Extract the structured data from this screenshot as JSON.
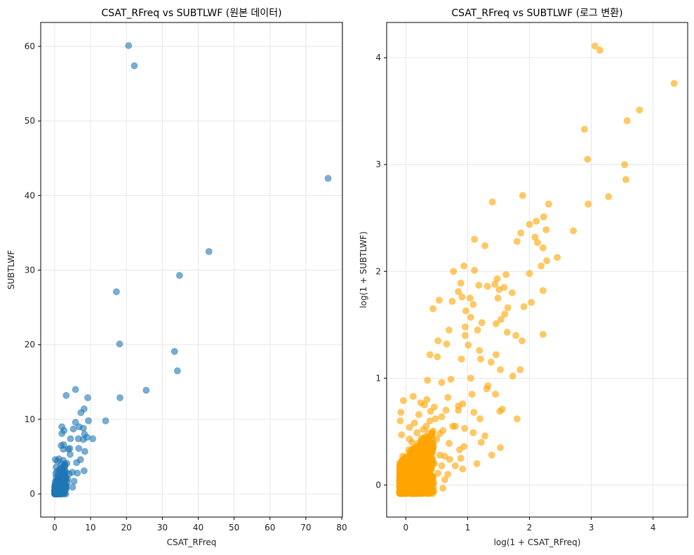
{
  "chart_data": [
    {
      "type": "scatter",
      "title": "CSAT_RFreq vs SUBTLWF (원본 데이터)",
      "xlabel": "CSAT_RFreq",
      "ylabel": "SUBTLWF",
      "xlim": [
        -3.9,
        80.2
      ],
      "ylim": [
        -3.1,
        63.2
      ],
      "xticks": [
        0,
        10,
        20,
        30,
        40,
        50,
        60,
        70,
        80
      ],
      "xtick_labels": [
        "0",
        "10",
        "20",
        "30",
        "40",
        "50",
        "60",
        "70",
        "80"
      ],
      "yticks": [
        0,
        10,
        20,
        30,
        40,
        50,
        60
      ],
      "ytick_labels": [
        "0",
        "10",
        "20",
        "30",
        "40",
        "50",
        "60"
      ],
      "grid": true,
      "color": "#1f77b4",
      "alpha": 0.6,
      "points": [
        [
          20.6,
          60.1
        ],
        [
          22.2,
          57.4
        ],
        [
          76.2,
          42.3
        ],
        [
          43.0,
          32.5
        ],
        [
          34.8,
          29.3
        ],
        [
          17.2,
          27.1
        ],
        [
          18.1,
          20.1
        ],
        [
          33.4,
          19.1
        ],
        [
          34.2,
          16.5
        ],
        [
          25.5,
          13.9
        ],
        [
          18.2,
          12.9
        ],
        [
          14.2,
          9.8
        ],
        [
          5.8,
          14.0
        ],
        [
          3.2,
          13.2
        ],
        [
          9.2,
          12.9
        ],
        [
          8.2,
          11.4
        ],
        [
          7.3,
          10.9
        ],
        [
          9.4,
          9.8
        ],
        [
          10.6,
          7.4
        ],
        [
          2.0,
          9.0
        ],
        [
          5.8,
          9.6
        ],
        [
          6.8,
          9.0
        ],
        [
          8.0,
          8.8
        ],
        [
          5.2,
          8.7
        ],
        [
          2.6,
          8.5
        ],
        [
          2.0,
          8.1
        ],
        [
          8.3,
          8.0
        ],
        [
          9.0,
          7.6
        ],
        [
          1.8,
          6.5
        ],
        [
          2.5,
          6.6
        ],
        [
          4.4,
          7.4
        ],
        [
          6.6,
          7.4
        ],
        [
          8.0,
          7.3
        ],
        [
          2.4,
          6.0
        ],
        [
          3.8,
          6.0
        ],
        [
          4.2,
          6.1
        ],
        [
          6.7,
          6.1
        ],
        [
          8.4,
          5.7
        ],
        [
          1.2,
          4.7
        ],
        [
          0.2,
          4.6
        ],
        [
          0.8,
          4.4
        ],
        [
          2.4,
          4.5
        ],
        [
          4.3,
          5.3
        ],
        [
          6.1,
          4.2
        ],
        [
          7.2,
          4.6
        ],
        [
          3.4,
          4.1
        ],
        [
          4.9,
          2.9
        ],
        [
          8.2,
          3.1
        ],
        [
          6.3,
          2.8
        ],
        [
          5.0,
          0.9
        ],
        [
          5.4,
          1.7
        ],
        [
          2.2,
          2.0
        ],
        [
          3.0,
          2.3
        ],
        [
          4.0,
          2.7
        ],
        [
          1.5,
          3.4
        ],
        [
          2.8,
          3.7
        ],
        [
          1.0,
          2.6
        ],
        [
          0.5,
          1.8
        ],
        [
          1.8,
          1.2
        ],
        [
          3.5,
          1.5
        ],
        [
          0.3,
          0.8
        ],
        [
          0.7,
          0.4
        ],
        [
          1.2,
          0.9
        ],
        [
          2.1,
          0.6
        ],
        [
          0.2,
          0.2
        ],
        [
          0.5,
          0.1
        ],
        [
          1.0,
          0.3
        ],
        [
          1.5,
          0.5
        ],
        [
          0.1,
          1.2
        ],
        [
          0.4,
          2.2
        ],
        [
          0.9,
          1.4
        ],
        [
          1.3,
          1.7
        ],
        [
          1.7,
          2.3
        ],
        [
          2.4,
          1.3
        ],
        [
          2.9,
          0.9
        ],
        [
          3.6,
          2.0
        ],
        [
          0.6,
          3.0
        ],
        [
          0.2,
          0.0
        ],
        [
          0.1,
          0.5
        ],
        [
          0.8,
          0.1
        ],
        [
          1.4,
          0.2
        ],
        [
          2.0,
          0.1
        ],
        [
          0.3,
          1.0
        ],
        [
          0.6,
          0.6
        ],
        [
          1.1,
          1.1
        ],
        [
          0.9,
          2.0
        ],
        [
          1.6,
          2.9
        ],
        [
          2.2,
          3.1
        ],
        [
          0.4,
          3.6
        ],
        [
          1.9,
          4.0
        ],
        [
          0.0,
          0.0
        ],
        [
          0.2,
          0.4
        ],
        [
          0.5,
          0.9
        ],
        [
          0.7,
          1.6
        ],
        [
          1.0,
          2.4
        ],
        [
          1.3,
          3.2
        ],
        [
          0.3,
          2.7
        ],
        [
          0.1,
          1.6
        ],
        [
          0.6,
          0.2
        ],
        [
          1.0,
          0.0
        ],
        [
          1.8,
          0.3
        ],
        [
          2.5,
          0.4
        ],
        [
          3.2,
          0.7
        ]
      ]
    },
    {
      "type": "scatter",
      "title": "CSAT_RFreq vs SUBTLWF (로그 변환)",
      "xlabel": "log(1 + CSAT_RFreq)",
      "ylabel": "log(1 + SUBTLWF)",
      "xlim": [
        -0.31,
        4.56
      ],
      "ylim": [
        -0.3,
        4.33
      ],
      "xticks": [
        0,
        1,
        2,
        3,
        4
      ],
      "xtick_labels": [
        "0",
        "1",
        "2",
        "3",
        "4"
      ],
      "yticks": [
        0,
        1,
        2,
        3,
        4
      ],
      "ytick_labels": [
        "0",
        "1",
        "2",
        "3",
        "4"
      ],
      "grid": true,
      "color": "#ffa500",
      "alpha": 0.6,
      "points": [
        [
          3.06,
          4.11
        ],
        [
          3.14,
          4.07
        ],
        [
          4.34,
          3.76
        ],
        [
          3.78,
          3.51
        ],
        [
          3.58,
          3.41
        ],
        [
          2.89,
          3.33
        ],
        [
          2.94,
          3.05
        ],
        [
          3.54,
          3.0
        ],
        [
          3.56,
          2.86
        ],
        [
          3.28,
          2.7
        ],
        [
          2.95,
          2.63
        ],
        [
          1.4,
          2.65
        ],
        [
          1.89,
          2.71
        ],
        [
          2.31,
          2.63
        ],
        [
          2.23,
          2.51
        ],
        [
          2.11,
          2.47
        ],
        [
          2.0,
          2.44
        ],
        [
          2.27,
          2.39
        ],
        [
          2.71,
          2.38
        ],
        [
          1.86,
          2.36
        ],
        [
          2.09,
          2.32
        ],
        [
          1.11,
          2.3
        ],
        [
          2.13,
          2.27
        ],
        [
          1.28,
          2.24
        ],
        [
          1.8,
          2.28
        ],
        [
          2.45,
          2.13
        ],
        [
          2.22,
          2.22
        ],
        [
          2.28,
          2.1
        ],
        [
          0.94,
          2.05
        ],
        [
          2.19,
          2.05
        ],
        [
          0.77,
          2.0
        ],
        [
          1.11,
          2.01
        ],
        [
          2.0,
          1.98
        ],
        [
          1.62,
          1.97
        ],
        [
          1.48,
          1.93
        ],
        [
          1.59,
          1.85
        ],
        [
          1.44,
          1.88
        ],
        [
          0.89,
          1.89
        ],
        [
          1.32,
          1.86
        ],
        [
          1.18,
          1.87
        ],
        [
          0.85,
          1.81
        ],
        [
          1.72,
          1.8
        ],
        [
          1.51,
          1.83
        ],
        [
          1.49,
          1.75
        ],
        [
          2.22,
          1.82
        ],
        [
          0.91,
          1.76
        ],
        [
          0.54,
          1.73
        ],
        [
          0.75,
          1.72
        ],
        [
          1.04,
          1.75
        ],
        [
          1.65,
          1.66
        ],
        [
          1.09,
          1.69
        ],
        [
          1.91,
          1.67
        ],
        [
          2.03,
          1.71
        ],
        [
          0.44,
          1.65
        ],
        [
          0.97,
          1.63
        ],
        [
          1.6,
          1.6
        ],
        [
          1.54,
          1.55
        ],
        [
          1.05,
          1.57
        ],
        [
          1.23,
          1.52
        ],
        [
          1.46,
          1.51
        ],
        [
          0.96,
          1.48
        ],
        [
          0.7,
          1.45
        ],
        [
          1.16,
          1.45
        ],
        [
          1.64,
          1.43
        ],
        [
          1.78,
          1.4
        ],
        [
          2.22,
          1.41
        ],
        [
          1.88,
          1.35
        ],
        [
          0.96,
          1.4
        ],
        [
          0.52,
          1.35
        ],
        [
          0.66,
          1.32
        ],
        [
          1.01,
          1.31
        ],
        [
          1.19,
          1.26
        ],
        [
          1.46,
          1.22
        ],
        [
          0.39,
          1.22
        ],
        [
          0.51,
          1.2
        ],
        [
          0.9,
          1.18
        ],
        [
          1.21,
          1.18
        ],
        [
          1.38,
          1.15
        ],
        [
          1.85,
          1.08
        ],
        [
          1.53,
          1.08
        ],
        [
          1.73,
          1.02
        ],
        [
          1.05,
          1.0
        ],
        [
          0.73,
          0.99
        ],
        [
          0.35,
          0.98
        ],
        [
          0.58,
          0.96
        ],
        [
          1.33,
          0.93
        ],
        [
          1.45,
          0.85
        ],
        [
          1.31,
          0.9
        ],
        [
          1.07,
          0.85
        ],
        [
          0.12,
          0.83
        ],
        [
          0.34,
          0.8
        ],
        [
          0.68,
          0.82
        ],
        [
          0.92,
          0.76
        ],
        [
          1.1,
          0.68
        ],
        [
          1.56,
          0.71
        ],
        [
          1.52,
          0.69
        ],
        [
          1.2,
          0.62
        ],
        [
          1.8,
          0.62
        ],
        [
          0.46,
          0.73
        ],
        [
          0.85,
          0.74
        ],
        [
          -0.04,
          0.79
        ],
        [
          0.24,
          0.77
        ],
        [
          1.09,
          0.49
        ],
        [
          1.28,
          0.46
        ],
        [
          1.22,
          0.4
        ],
        [
          0.94,
          0.36
        ],
        [
          1.53,
          0.35
        ],
        [
          1.39,
          0.28
        ],
        [
          0.89,
          0.25
        ],
        [
          1.15,
          0.2
        ],
        [
          0.92,
          0.15
        ],
        [
          0.3,
          0.75
        ],
        [
          0.58,
          0.64
        ],
        [
          0.76,
          0.55
        ],
        [
          0.87,
          0.33
        ],
        [
          0.63,
          0.27
        ],
        [
          0.5,
          0.43
        ],
        [
          0.46,
          0.2
        ],
        [
          0.68,
          0.1
        ],
        [
          0.39,
          0.6
        ],
        [
          0.21,
          0.66
        ],
        [
          0.06,
          0.54
        ],
        [
          0.18,
          0.49
        ],
        [
          0.33,
          0.41
        ],
        [
          0.1,
          0.4
        ],
        [
          0.26,
          0.31
        ],
        [
          0.44,
          0.34
        ],
        [
          0.55,
          0.28
        ],
        [
          0.71,
          0.24
        ],
        [
          0.16,
          0.27
        ],
        [
          0.05,
          0.33
        ],
        [
          -0.07,
          0.47
        ],
        [
          -0.09,
          0.6
        ],
        [
          -0.08,
          0.68
        ],
        [
          0.09,
          0.2
        ],
        [
          0.27,
          0.17
        ],
        [
          0.38,
          0.12
        ],
        [
          0.52,
          0.11
        ],
        [
          0.63,
          0.05
        ],
        [
          0.8,
          0.18
        ],
        [
          0.21,
          0.06
        ],
        [
          0.08,
          0.09
        ],
        [
          0.0,
          0.0
        ],
        [
          0.03,
          0.15
        ],
        [
          -0.05,
          0.27
        ],
        [
          0.14,
          0.35
        ],
        [
          0.31,
          0.05
        ],
        [
          0.45,
          0.02
        ],
        [
          0.58,
          0.18
        ],
        [
          0.19,
          0.12
        ],
        [
          0.25,
          0.44
        ],
        [
          0.37,
          0.26
        ],
        [
          0.12,
          0.01
        ],
        [
          0.42,
          0.47
        ],
        [
          0.7,
          0.39
        ],
        [
          0.6,
          0.51
        ],
        [
          0.33,
          0.55
        ],
        [
          0.14,
          0.58
        ],
        [
          0.48,
          0.62
        ],
        [
          0.8,
          0.55
        ],
        [
          0.55,
          0.48
        ],
        [
          0.28,
          0.52
        ],
        [
          0.06,
          0.43
        ],
        [
          0.85,
          0.7
        ],
        [
          0.65,
          0.7
        ],
        [
          0.4,
          0.69
        ],
        [
          0.95,
          0.53
        ],
        [
          0.22,
          0.35
        ],
        [
          0.02,
          0.05
        ],
        [
          -0.06,
          -0.06
        ],
        [
          0.05,
          -0.07
        ],
        [
          0.15,
          -0.05
        ],
        [
          0.3,
          -0.04
        ],
        [
          0.45,
          -0.06
        ],
        [
          0.6,
          -0.03
        ],
        [
          -0.04,
          0.1
        ],
        [
          0.1,
          -0.02
        ]
      ],
      "dense_cluster": {
        "x_range": [
          -0.1,
          0.5
        ],
        "y_range": [
          -0.1,
          0.5
        ]
      }
    }
  ]
}
